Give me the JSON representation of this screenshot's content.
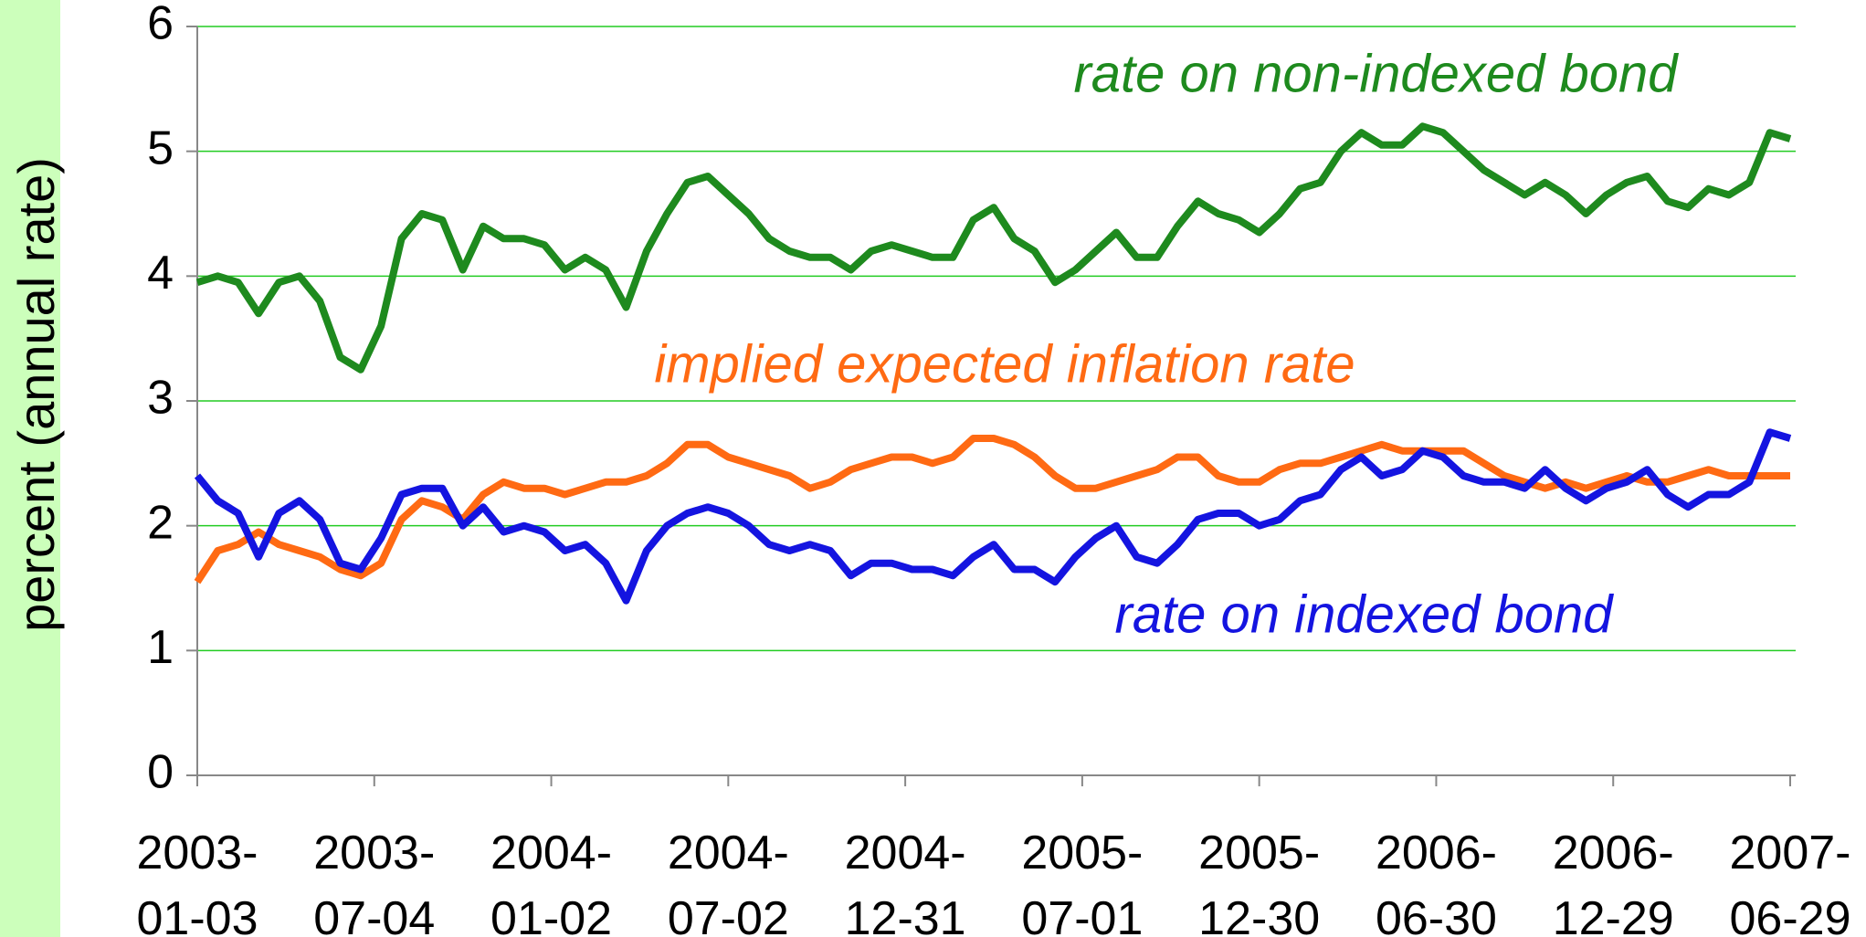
{
  "chart_data": {
    "type": "line",
    "y_label": "percent (annual rate)",
    "x": [
      "2003-01-03",
      "2003-01-24",
      "2003-02-14",
      "2003-03-07",
      "2003-03-28",
      "2003-04-18",
      "2003-05-09",
      "2003-05-30",
      "2003-06-20",
      "2003-07-11",
      "2003-08-01",
      "2003-08-22",
      "2003-09-12",
      "2003-10-03",
      "2003-10-24",
      "2003-11-14",
      "2003-12-05",
      "2003-12-26",
      "2004-01-16",
      "2004-02-06",
      "2004-02-27",
      "2004-03-19",
      "2004-04-09",
      "2004-04-30",
      "2004-05-21",
      "2004-06-11",
      "2004-07-02",
      "2004-07-23",
      "2004-08-13",
      "2004-09-03",
      "2004-09-24",
      "2004-10-15",
      "2004-11-05",
      "2004-11-26",
      "2004-12-17",
      "2005-01-07",
      "2005-01-28",
      "2005-02-18",
      "2005-03-11",
      "2005-04-01",
      "2005-04-22",
      "2005-05-13",
      "2005-06-03",
      "2005-06-24",
      "2005-07-15",
      "2005-08-05",
      "2005-08-26",
      "2005-09-16",
      "2005-10-07",
      "2005-10-28",
      "2005-11-18",
      "2005-12-09",
      "2005-12-30",
      "2006-01-20",
      "2006-02-10",
      "2006-03-03",
      "2006-03-24",
      "2006-04-14",
      "2006-05-05",
      "2006-05-26",
      "2006-06-16",
      "2006-07-07",
      "2006-07-28",
      "2006-08-18",
      "2006-09-08",
      "2006-09-29",
      "2006-10-20",
      "2006-11-10",
      "2006-12-01",
      "2006-12-22",
      "2007-01-12",
      "2007-02-02",
      "2007-02-23",
      "2007-03-16",
      "2007-04-06",
      "2007-04-27",
      "2007-05-18",
      "2007-06-08",
      "2007-06-29"
    ],
    "series": [
      {
        "name": "rate on non-indexed bond",
        "color": "#1e8a1e",
        "values": [
          3.95,
          4.0,
          3.95,
          3.7,
          3.95,
          4.0,
          3.8,
          3.35,
          3.25,
          3.6,
          4.3,
          4.5,
          4.45,
          4.05,
          4.4,
          4.3,
          4.3,
          4.25,
          4.05,
          4.15,
          4.05,
          3.75,
          4.2,
          4.5,
          4.75,
          4.8,
          4.65,
          4.5,
          4.3,
          4.2,
          4.15,
          4.15,
          4.05,
          4.2,
          4.25,
          4.2,
          4.15,
          4.15,
          4.45,
          4.55,
          4.3,
          4.2,
          3.95,
          4.05,
          4.2,
          4.35,
          4.15,
          4.15,
          4.4,
          4.6,
          4.5,
          4.45,
          4.35,
          4.5,
          4.7,
          4.75,
          5.0,
          5.15,
          5.05,
          5.05,
          5.2,
          5.15,
          5.0,
          4.85,
          4.75,
          4.65,
          4.75,
          4.65,
          4.5,
          4.65,
          4.75,
          4.8,
          4.6,
          4.55,
          4.7,
          4.65,
          4.75,
          5.15,
          5.1
        ]
      },
      {
        "name": "implied expected inflation rate",
        "color": "#ff6a13",
        "values": [
          1.55,
          1.8,
          1.85,
          1.95,
          1.85,
          1.8,
          1.75,
          1.65,
          1.6,
          1.7,
          2.05,
          2.2,
          2.15,
          2.05,
          2.25,
          2.35,
          2.3,
          2.3,
          2.25,
          2.3,
          2.35,
          2.35,
          2.4,
          2.5,
          2.65,
          2.65,
          2.55,
          2.5,
          2.45,
          2.4,
          2.3,
          2.35,
          2.45,
          2.5,
          2.55,
          2.55,
          2.5,
          2.55,
          2.7,
          2.7,
          2.65,
          2.55,
          2.4,
          2.3,
          2.3,
          2.35,
          2.4,
          2.45,
          2.55,
          2.55,
          2.4,
          2.35,
          2.35,
          2.45,
          2.5,
          2.5,
          2.55,
          2.6,
          2.65,
          2.6,
          2.6,
          2.6,
          2.6,
          2.5,
          2.4,
          2.35,
          2.3,
          2.35,
          2.3,
          2.35,
          2.4,
          2.35,
          2.35,
          2.4,
          2.45,
          2.4,
          2.4,
          2.4,
          2.4
        ]
      },
      {
        "name": "rate on indexed bond",
        "color": "#1414e0",
        "values": [
          2.4,
          2.2,
          2.1,
          1.75,
          2.1,
          2.2,
          2.05,
          1.7,
          1.65,
          1.9,
          2.25,
          2.3,
          2.3,
          2.0,
          2.15,
          1.95,
          2.0,
          1.95,
          1.8,
          1.85,
          1.7,
          1.4,
          1.8,
          2.0,
          2.1,
          2.15,
          2.1,
          2.0,
          1.85,
          1.8,
          1.85,
          1.8,
          1.6,
          1.7,
          1.7,
          1.65,
          1.65,
          1.6,
          1.75,
          1.85,
          1.65,
          1.65,
          1.55,
          1.75,
          1.9,
          2.0,
          1.75,
          1.7,
          1.85,
          2.05,
          2.1,
          2.1,
          2.0,
          2.05,
          2.2,
          2.25,
          2.45,
          2.55,
          2.4,
          2.45,
          2.6,
          2.55,
          2.4,
          2.35,
          2.35,
          2.3,
          2.45,
          2.3,
          2.2,
          2.3,
          2.35,
          2.45,
          2.25,
          2.15,
          2.25,
          2.25,
          2.35,
          2.75,
          2.7
        ]
      }
    ],
    "xlim": [
      "2003-01-03",
      "2007-06-29"
    ],
    "xticks": [
      {
        "value": "2003-01-03",
        "label": "2003-\n01-03"
      },
      {
        "value": "2003-07-04",
        "label": "2003-\n07-04"
      },
      {
        "value": "2004-01-02",
        "label": "2004-\n01-02"
      },
      {
        "value": "2004-07-02",
        "label": "2004-\n07-02"
      },
      {
        "value": "2004-12-31",
        "label": "2004-\n12-31"
      },
      {
        "value": "2005-07-01",
        "label": "2005-\n07-01"
      },
      {
        "value": "2005-12-30",
        "label": "2005-\n12-30"
      },
      {
        "value": "2006-06-30",
        "label": "2006-\n06-30"
      },
      {
        "value": "2006-12-29",
        "label": "2006-\n12-29"
      },
      {
        "value": "2007-06-29",
        "label": "2007-\n06-29"
      }
    ],
    "ylim": [
      0,
      6
    ],
    "yticks": [
      0,
      1,
      2,
      3,
      4,
      5,
      6
    ],
    "grid": true
  }
}
